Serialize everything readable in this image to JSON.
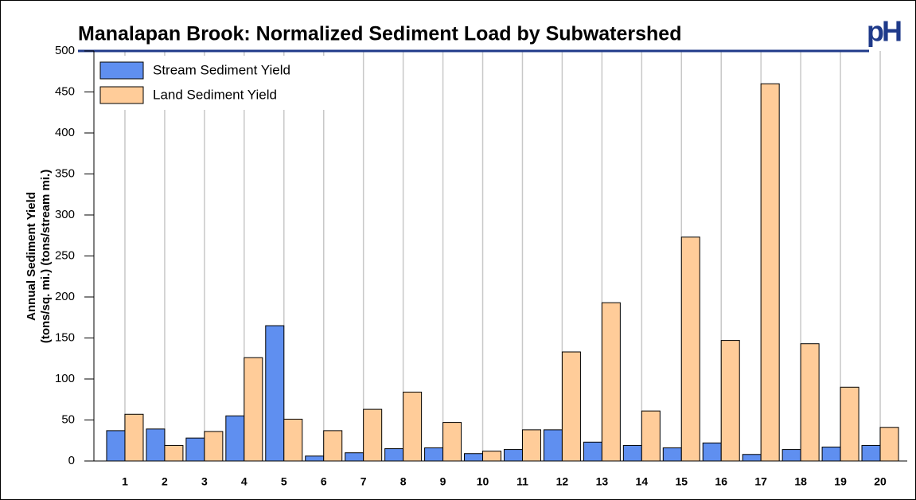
{
  "chart_data": {
    "type": "bar",
    "title": "Manalapan Brook: Normalized Sediment Load by Subwatershed",
    "logo": "pH",
    "ylabel": [
      "Annual Sediment Yield",
      "(tons/sq. mi.) (tons/stream mi.)"
    ],
    "categories": [
      "1",
      "2",
      "3",
      "4",
      "5",
      "6",
      "7",
      "8",
      "9",
      "10",
      "11",
      "12",
      "13",
      "14",
      "15",
      "16",
      "17",
      "18",
      "19",
      "20"
    ],
    "series": [
      {
        "name": "Stream Sediment Yield",
        "color": "#5f8ff0",
        "values": [
          37,
          39,
          28,
          55,
          165,
          6,
          10,
          15,
          16,
          9,
          14,
          38,
          23,
          19,
          16,
          22,
          8,
          14,
          17,
          19
        ]
      },
      {
        "name": "Land Sediment Yield",
        "color": "#ffcc99",
        "values": [
          57,
          19,
          36,
          126,
          51,
          37,
          63,
          84,
          47,
          12,
          38,
          133,
          193,
          61,
          273,
          147,
          460,
          143,
          90,
          41
        ]
      }
    ],
    "ylim": [
      0,
      500
    ],
    "yticks": [
      0,
      50,
      100,
      150,
      200,
      250,
      300,
      350,
      400,
      450,
      500
    ],
    "legend": "upper left",
    "grid": "x"
  }
}
